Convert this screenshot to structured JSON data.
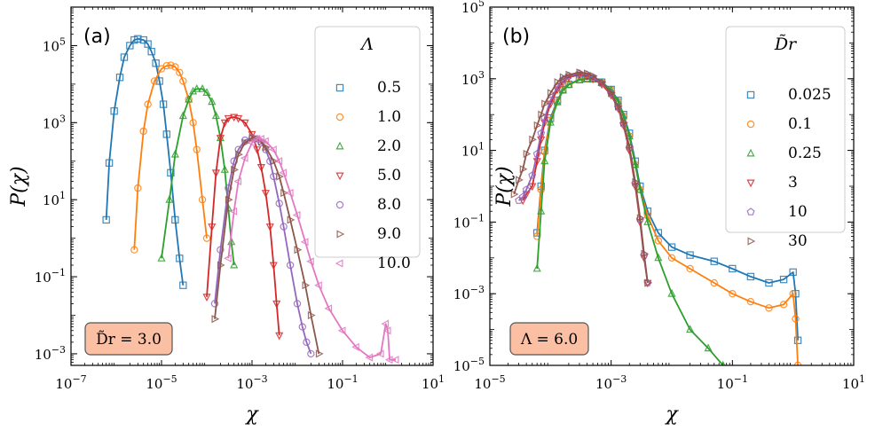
{
  "chart_data": [
    {
      "type": "line",
      "panel_label": "(a)",
      "xlabel": "χ",
      "ylabel": "P(χ)",
      "x_scale": "log",
      "y_scale": "log",
      "xlim": [
        1e-07,
        10
      ],
      "ylim": [
        0.0005,
        1000000
      ],
      "x_ticks": [
        1e-07,
        1e-05,
        0.001,
        0.1,
        10
      ],
      "x_tick_labels": [
        "10^-7",
        "10^-5",
        "10^-3",
        "10^-1",
        "10^1"
      ],
      "y_ticks": [
        0.001,
        0.1,
        10,
        1000,
        100000
      ],
      "y_tick_labels": [
        "10^-3",
        "10^-1",
        "10^1",
        "10^3",
        "10^5"
      ],
      "legend": {
        "title": "Λ",
        "position": "top-right"
      },
      "annotation": "D̃r = 3.0",
      "series": [
        {
          "name": "0.5",
          "color": "#1f77b4",
          "marker": "square",
          "x": [
            6e-07,
            7e-07,
            9e-07,
            1.2e-06,
            1.5e-06,
            2e-06,
            2.5e-06,
            3e-06,
            4e-06,
            5e-06,
            6e-06,
            7.5e-06,
            9e-06,
            1.1e-05,
            1.3e-05,
            1.6e-05,
            2e-05,
            2.5e-05,
            3e-05
          ],
          "y": [
            3,
            90,
            2000,
            15000,
            50000,
            100000,
            140000,
            150000,
            140000,
            110000,
            70000,
            35000,
            12000,
            3000,
            500,
            50,
            3,
            0.3,
            0.06
          ]
        },
        {
          "name": "1.0",
          "color": "#ff7f0e",
          "marker": "circle",
          "x": [
            2.5e-06,
            3e-06,
            4e-06,
            5e-06,
            7e-06,
            1e-05,
            1.3e-05,
            1.6e-05,
            2e-05,
            2.5e-05,
            3e-05,
            4e-05,
            5e-05,
            6e-05,
            8e-05,
            0.0001
          ],
          "y": [
            0.5,
            20,
            600,
            3000,
            12000,
            25000,
            30000,
            31000,
            28000,
            20000,
            12000,
            4000,
            1000,
            200,
            10,
            1
          ]
        },
        {
          "name": "2.0",
          "color": "#2ca02c",
          "marker": "triangle-up",
          "x": [
            1e-05,
            1.5e-05,
            2e-05,
            3e-05,
            4e-05,
            5e-05,
            6e-05,
            8e-05,
            0.0001,
            0.00013,
            0.00016,
            0.0002,
            0.00025,
            0.0003,
            0.00035,
            0.0004
          ],
          "y": [
            0.3,
            10,
            150,
            1500,
            4000,
            6500,
            7500,
            7500,
            6000,
            3500,
            1500,
            400,
            60,
            6,
            0.8,
            0.2
          ]
        },
        {
          "name": "5.0",
          "color": "#d62728",
          "marker": "triangle-down",
          "x": [
            0.0001,
            0.00013,
            0.00016,
            0.0002,
            0.00025,
            0.0003,
            0.0004,
            0.0005,
            0.0007,
            0.001,
            0.0013,
            0.0016,
            0.002,
            0.0025,
            0.003,
            0.0035,
            0.004
          ],
          "y": [
            0.03,
            2,
            50,
            400,
            1000,
            1300,
            1400,
            1300,
            1000,
            500,
            200,
            70,
            15,
            2,
            0.2,
            0.02,
            0.003
          ]
        },
        {
          "name": "8.0",
          "color": "#9467bd",
          "marker": "circle",
          "x": [
            0.00015,
            0.0002,
            0.0003,
            0.0004,
            0.0005,
            0.0007,
            0.001,
            0.0013,
            0.0016,
            0.002,
            0.0025,
            0.003,
            0.004,
            0.005,
            0.007,
            0.01,
            0.013,
            0.016,
            0.02
          ],
          "y": [
            0.02,
            0.5,
            20,
            100,
            200,
            350,
            400,
            380,
            300,
            200,
            100,
            40,
            8,
            2,
            0.2,
            0.02,
            0.005,
            0.002,
            0.001
          ]
        },
        {
          "name": "9.0",
          "color": "#8c564b",
          "marker": "triangle-right",
          "x": [
            0.00015,
            0.0002,
            0.0003,
            0.0004,
            0.0005,
            0.0007,
            0.001,
            0.0013,
            0.0016,
            0.002,
            0.003,
            0.004,
            0.005,
            0.007,
            0.01,
            0.015,
            0.02,
            0.03
          ],
          "y": [
            0.008,
            0.2,
            10,
            60,
            150,
            300,
            400,
            380,
            320,
            230,
            100,
            40,
            15,
            3,
            0.5,
            0.06,
            0.01,
            0.001
          ]
        },
        {
          "name": "10.0",
          "color": "#e377c2",
          "marker": "triangle-left",
          "x": [
            0.0003,
            0.0004,
            0.0005,
            0.0007,
            0.001,
            0.0013,
            0.0016,
            0.002,
            0.003,
            0.004,
            0.005,
            0.007,
            0.01,
            0.015,
            0.02,
            0.03,
            0.05,
            0.1,
            0.2,
            0.4,
            0.7,
            0.9,
            1.0,
            1.1,
            1.5
          ],
          "y": [
            0.3,
            5,
            30,
            120,
            300,
            380,
            380,
            330,
            200,
            100,
            50,
            15,
            4,
            0.8,
            0.25,
            0.06,
            0.015,
            0.004,
            0.0015,
            0.0008,
            0.001,
            0.006,
            0.004,
            0.0007,
            0.0007
          ]
        }
      ]
    },
    {
      "type": "line",
      "panel_label": "(b)",
      "xlabel": "χ",
      "ylabel": "P(χ)",
      "x_scale": "log",
      "y_scale": "log",
      "xlim": [
        1e-05,
        10
      ],
      "ylim": [
        1e-05,
        100000
      ],
      "x_ticks": [
        1e-05,
        0.001,
        0.1,
        10
      ],
      "x_tick_labels": [
        "10^-5",
        "10^-3",
        "10^-1",
        "10^1"
      ],
      "y_ticks": [
        1e-05,
        0.001,
        0.1,
        10,
        1000,
        100000
      ],
      "y_tick_labels": [
        "10^-5",
        "10^-3",
        "10^-1",
        "10^1",
        "10^3",
        "10^5"
      ],
      "legend": {
        "title": "D̃r",
        "position": "top-right"
      },
      "annotation": "Λ = 6.0",
      "series": [
        {
          "name": "0.025",
          "color": "#1f77b4",
          "marker": "square",
          "x": [
            6e-05,
            7e-05,
            8e-05,
            0.0001,
            0.00013,
            0.00016,
            0.0002,
            0.0003,
            0.0004,
            0.0005,
            0.0007,
            0.001,
            0.0013,
            0.0016,
            0.002,
            0.0025,
            0.003,
            0.004,
            0.006,
            0.01,
            0.02,
            0.05,
            0.1,
            0.2,
            0.4,
            0.7,
            1.0,
            1.1,
            1.2
          ],
          "y": [
            0.05,
            1,
            10,
            80,
            250,
            500,
            700,
            950,
            1000,
            1000,
            800,
            500,
            250,
            100,
            30,
            5,
            1,
            0.2,
            0.05,
            0.02,
            0.012,
            0.008,
            0.005,
            0.003,
            0.002,
            0.0025,
            0.004,
            0.001,
            5e-05
          ]
        },
        {
          "name": "0.1",
          "color": "#ff7f0e",
          "marker": "circle",
          "x": [
            6e-05,
            7e-05,
            8e-05,
            0.0001,
            0.00013,
            0.00016,
            0.0002,
            0.0003,
            0.0004,
            0.0005,
            0.0007,
            0.001,
            0.0013,
            0.0016,
            0.002,
            0.0025,
            0.003,
            0.004,
            0.006,
            0.01,
            0.02,
            0.05,
            0.1,
            0.2,
            0.4,
            0.7,
            1.0,
            1.1,
            1.2
          ],
          "y": [
            0.04,
            0.8,
            9,
            70,
            230,
            480,
            680,
            930,
            1000,
            980,
            780,
            480,
            230,
            90,
            25,
            4,
            0.8,
            0.15,
            0.03,
            0.01,
            0.005,
            0.002,
            0.001,
            0.0006,
            0.0004,
            0.0005,
            0.001,
            0.0002,
            1e-05
          ]
        },
        {
          "name": "0.25",
          "color": "#2ca02c",
          "marker": "triangle-up",
          "x": [
            6e-05,
            7e-05,
            8e-05,
            0.0001,
            0.00013,
            0.00016,
            0.0002,
            0.0003,
            0.0004,
            0.0005,
            0.0007,
            0.001,
            0.0013,
            0.0016,
            0.002,
            0.0025,
            0.003,
            0.004,
            0.006,
            0.01,
            0.02,
            0.04,
            0.07,
            0.09
          ],
          "y": [
            0.005,
            0.2,
            5,
            60,
            220,
            470,
            680,
            930,
            1000,
            980,
            780,
            480,
            230,
            90,
            25,
            4,
            0.8,
            0.1,
            0.01,
            0.001,
            0.0001,
            3e-05,
            1e-05,
            5e-06
          ]
        },
        {
          "name": "3",
          "color": "#d62728",
          "marker": "triangle-down",
          "x": [
            3.5e-05,
            4e-05,
            5e-05,
            6e-05,
            7e-05,
            8e-05,
            0.0001,
            0.00013,
            0.00016,
            0.0002,
            0.0003,
            0.0004,
            0.0005,
            0.0007,
            0.001,
            0.0013,
            0.0016,
            0.002,
            0.0025,
            0.003,
            0.0035,
            0.004
          ],
          "y": [
            0.4,
            0.6,
            1,
            5,
            20,
            60,
            200,
            500,
            800,
            1100,
            1300,
            1200,
            1000,
            700,
            350,
            150,
            50,
            10,
            1,
            0.1,
            0.01,
            0.002
          ]
        },
        {
          "name": "10",
          "color": "#9467bd",
          "marker": "pentagon",
          "x": [
            3e-05,
            3.5e-05,
            4e-05,
            5e-05,
            6e-05,
            7e-05,
            8e-05,
            0.0001,
            0.00013,
            0.00016,
            0.0002,
            0.0003,
            0.0004,
            0.0005,
            0.0007,
            0.001,
            0.0013,
            0.0016,
            0.002,
            0.0025,
            0.003,
            0.0035,
            0.004
          ],
          "y": [
            0.4,
            0.5,
            0.8,
            2,
            8,
            30,
            80,
            250,
            600,
            950,
            1200,
            1400,
            1300,
            1100,
            750,
            380,
            160,
            55,
            12,
            1.2,
            0.12,
            0.012,
            0.002
          ]
        },
        {
          "name": "30",
          "color": "#8c564b",
          "marker": "triangle-right",
          "x": [
            2.5e-05,
            3e-05,
            3.5e-05,
            4e-05,
            5e-05,
            6e-05,
            7e-05,
            8e-05,
            0.0001,
            0.00013,
            0.00016,
            0.0002,
            0.0003,
            0.0004,
            0.0005,
            0.0007,
            0.001,
            0.0013,
            0.0016,
            0.002,
            0.0025,
            0.003,
            0.0035,
            0.004
          ],
          "y": [
            0.6,
            1.5,
            3,
            8,
            20,
            50,
            100,
            200,
            400,
            800,
            1100,
            1300,
            1500,
            1400,
            1200,
            800,
            400,
            170,
            60,
            13,
            1.3,
            0.13,
            0.013,
            0.002
          ]
        }
      ]
    }
  ]
}
